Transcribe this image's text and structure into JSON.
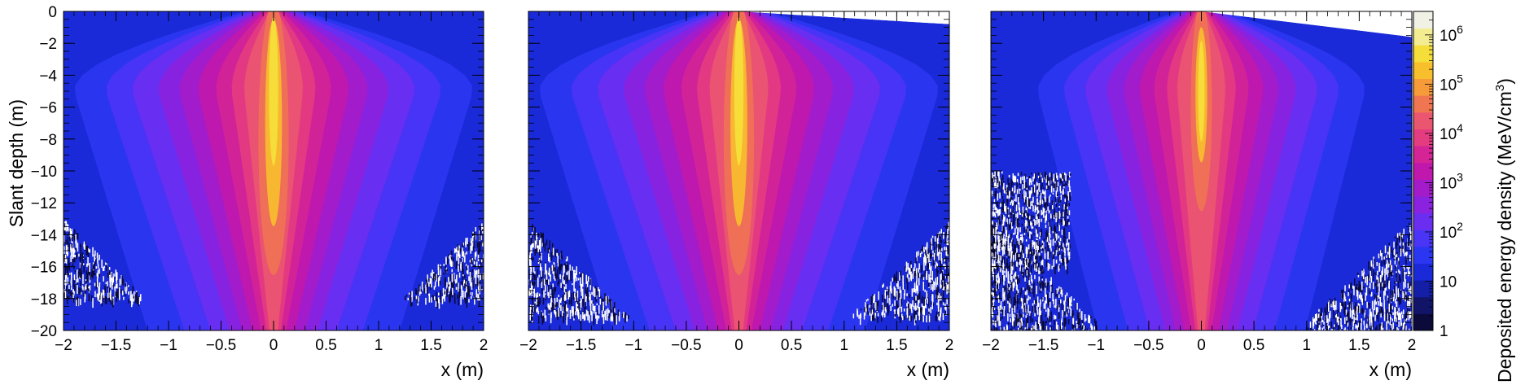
{
  "chart_data": [
    {
      "type": "heatmap",
      "panel": "left",
      "title": "",
      "xlabel": "x (m)",
      "ylabel": "Slant depth (m)",
      "xlim": [
        -2,
        2
      ],
      "ylim": [
        -20,
        0
      ],
      "x_ticks": [
        -2,
        -1.5,
        -1,
        -0.5,
        0,
        0.5,
        1,
        1.5,
        2
      ],
      "x_tick_labels": [
        "−2",
        "−1.5",
        "−1",
        "−0.5",
        "0",
        "0.5",
        "1",
        "1.5",
        "2"
      ],
      "y_ticks": [
        0,
        -2,
        -4,
        -6,
        -8,
        -10,
        -12,
        -14,
        -16,
        -18,
        -20
      ],
      "y_tick_labels": [
        "0",
        "−2",
        "−4",
        "−6",
        "−8",
        "−10",
        "−12",
        "−14",
        "−16",
        "−18",
        "−20"
      ],
      "surface_edge": [
        [
          -2,
          0
        ],
        [
          2,
          0
        ]
      ],
      "core_depth_range": [
        -1,
        -15
      ],
      "core_max_depth_of_peak": -5
    },
    {
      "type": "heatmap",
      "panel": "middle",
      "title": "",
      "xlabel": "x (m)",
      "ylabel": "",
      "xlim": [
        -2,
        2
      ],
      "ylim": [
        -20,
        0
      ],
      "x_ticks": [
        -2,
        -1.5,
        -1,
        -0.5,
        0,
        0.5,
        1,
        1.5,
        2
      ],
      "x_tick_labels": [
        "−2",
        "−1.5",
        "−1",
        "−0.5",
        "0",
        "0.5",
        "1",
        "1.5",
        "2"
      ],
      "y_ticks": [
        0,
        -2,
        -4,
        -6,
        -8,
        -10,
        -12,
        -14,
        -16,
        -18,
        -20
      ],
      "surface_edge": [
        [
          0,
          0
        ],
        [
          2,
          -0.8
        ]
      ],
      "core_depth_range": [
        -1,
        -15
      ],
      "core_max_depth_of_peak": -5
    },
    {
      "type": "heatmap",
      "panel": "right",
      "title": "",
      "xlabel": "x (m)",
      "ylabel": "",
      "xlim": [
        -2,
        2
      ],
      "ylim": [
        -20,
        0
      ],
      "x_ticks": [
        -2,
        -1.5,
        -1,
        -0.5,
        0,
        0.5,
        1,
        1.5,
        2
      ],
      "x_tick_labels": [
        "−2",
        "−1.5",
        "−1",
        "−0.5",
        "0",
        "0.5",
        "1",
        "1.5",
        "2"
      ],
      "y_ticks": [
        0,
        -2,
        -4,
        -6,
        -8,
        -10,
        -12,
        -14,
        -16,
        -18,
        -20
      ],
      "surface_edge": [
        [
          0,
          0
        ],
        [
          2,
          -1.6
        ]
      ],
      "core_depth_range": [
        -1.5,
        -11
      ],
      "core_max_depth_of_peak": -5
    }
  ],
  "colorbar": {
    "label": "Deposited energy density (MeV/cm",
    "label_superscript": "3",
    "label_close": ")",
    "scale": "log",
    "range": [
      1,
      3000000
    ],
    "ticks": [
      {
        "value": 1,
        "base": "1",
        "exp": ""
      },
      {
        "value": 10,
        "base": "10",
        "exp": ""
      },
      {
        "value": 100,
        "base": "10",
        "exp": "2"
      },
      {
        "value": 1000,
        "base": "10",
        "exp": "3"
      },
      {
        "value": 10000,
        "base": "10",
        "exp": "4"
      },
      {
        "value": 100000,
        "base": "10",
        "exp": "5"
      },
      {
        "value": 1000000,
        "base": "10",
        "exp": "6"
      }
    ],
    "colors": [
      "#0b0a3a",
      "#121468",
      "#141ea6",
      "#1a2ad8",
      "#2b36f2",
      "#4a34f6",
      "#6b2ef0",
      "#8b22e0",
      "#a41cc9",
      "#c018ad",
      "#d42495",
      "#e43c80",
      "#ea5670",
      "#f07652",
      "#f69a3a",
      "#f8bf2c",
      "#f5de3a",
      "#f3ec90",
      "#f1f1e6"
    ]
  }
}
